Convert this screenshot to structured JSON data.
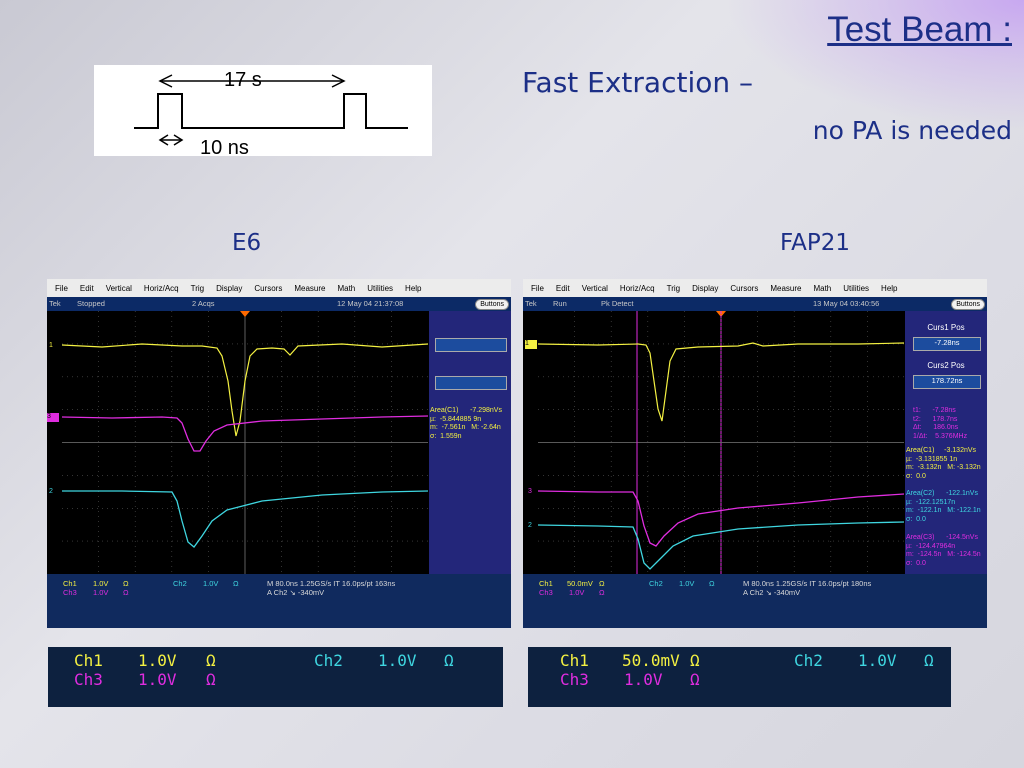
{
  "slide": {
    "title": "Test Beam :",
    "subtitle1": "Fast Extraction –",
    "subtitle2": "no PA is needed"
  },
  "pulse_diagram": {
    "period_label": "17 s",
    "width_label": "10 ns"
  },
  "panels": {
    "left_label": "E6",
    "right_label": "FAP21"
  },
  "menu": [
    "File",
    "Edit",
    "Vertical",
    "Horiz/Acq",
    "Trig",
    "Display",
    "Cursors",
    "Measure",
    "Math",
    "Utilities",
    "Help"
  ],
  "scope_left": {
    "brand": "Tek",
    "state": "Stopped",
    "acqs": "2 Acqs",
    "timestamp": "12 May 04 21:37:08",
    "buttons_label": "Buttons",
    "meas": [
      "Area(C1)      -7.298nVs",
      "µ:  -5.844885 9n",
      "m:  -7.561n   M: -2.64n",
      "σ:  1.559n"
    ],
    "bottom": {
      "ch1": "Ch1",
      "ch1v": "1.0V",
      "ch1o": "Ω",
      "ch2": "Ch2",
      "ch2v": "1.0V",
      "ch2o": "Ω",
      "ch3": "Ch3",
      "ch3v": "1.0V",
      "ch3o": "Ω",
      "timebase": "M 80.0ns 1.25GS/s   IT 16.0ps/pt 163ns",
      "trig": "A  Ch2  ↘  -340mV"
    },
    "markers": {
      "m1": "1",
      "m3": "3",
      "m2": "2"
    }
  },
  "scope_right": {
    "brand": "Tek",
    "state": "Run",
    "acqs": "Pk Detect",
    "timestamp": "13 May 04 03:40:56",
    "buttons_label": "Buttons",
    "curs1_label": "Curs1 Pos",
    "curs1_value": "-7.28ns",
    "curs2_label": "Curs2 Pos",
    "curs2_value": "178.72ns",
    "cursor_readout": [
      "t1:      -7.28ns",
      "t2:      178.7ns",
      "Δt:      186.0ns",
      "1/Δt:    5.376MHz"
    ],
    "meas_c1": [
      "Area(C1)     -3.132nVs",
      "µ:  -3.131855 1n",
      "m:  -3.132n   M: -3.132n",
      "σ:  0.0"
    ],
    "meas_c2": [
      "Area(C2)      -122.1nVs",
      "µ:  -122.12517n",
      "m:  -122.1n   M: -122.1n",
      "σ:  0.0"
    ],
    "meas_c3": [
      "Area(C3)      -124.5nVs",
      "µ:  -124.47964n",
      "m:  -124.5n   M: -124.5n",
      "σ:  0.0"
    ],
    "bottom": {
      "ch1": "Ch1",
      "ch1v": "50.0mV",
      "ch1o": "Ω",
      "ch2": "Ch2",
      "ch2v": "1.0V",
      "ch2o": "Ω",
      "ch3": "Ch3",
      "ch3v": "1.0V",
      "ch3o": "Ω",
      "timebase": "M 80.0ns 1.25GS/s   IT 16.0ps/pt 180ns",
      "trig": "A  Ch2  ↘  -340mV"
    },
    "markers": {
      "m1": "1",
      "m3": "3",
      "m2": "2"
    }
  },
  "box_left": {
    "ch1": "Ch1",
    "ch1v": "1.0V",
    "ch1o": "Ω",
    "ch2": "Ch2",
    "ch2v": "1.0V",
    "ch2o": "Ω",
    "ch3": "Ch3",
    "ch3v": "1.0V",
    "ch3o": "Ω"
  },
  "box_right": {
    "ch1": "Ch1",
    "ch1v": "50.0mV",
    "ch1o": "Ω",
    "ch2": "Ch2",
    "ch2v": "1.0V",
    "ch2o": "Ω",
    "ch3": "Ch3",
    "ch3v": "1.0V",
    "ch3o": "Ω"
  },
  "colors": {
    "ch1": "#f4f142",
    "ch2": "#3fd6e0",
    "ch3": "#e02de0",
    "title": "#1c2f87"
  }
}
